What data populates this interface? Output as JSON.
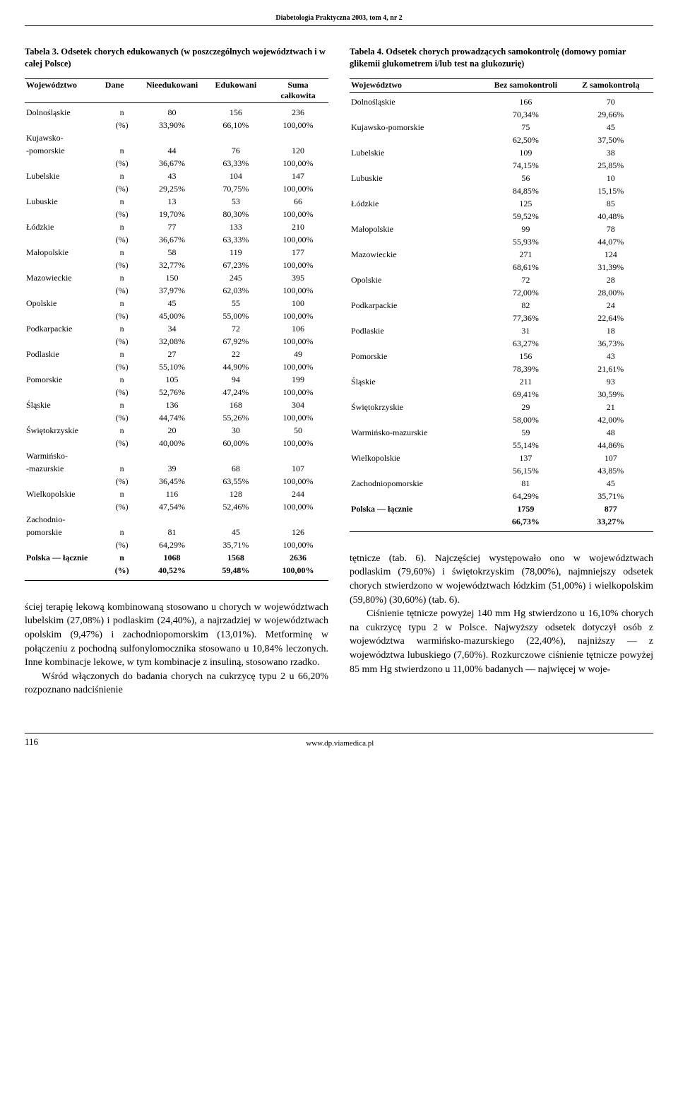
{
  "journal_header": "Diabetologia Praktyczna 2003, tom 4, nr 2",
  "footer": {
    "page": "116",
    "url": "www.dp.viamedica.pl"
  },
  "table3": {
    "caption": "Tabela 3. Odsetek chorych edukowanych (w poszczególnych województwach i w całej Polsce)",
    "head": {
      "c1": "Województwo",
      "c2": "Dane",
      "c3": "Nieedukowani",
      "c4": "Edukowani",
      "c5_a": "Suma",
      "c5_b": "całkowita"
    },
    "rows": [
      {
        "label": "Dolnośląskie",
        "n": [
          "80",
          "156",
          "236"
        ],
        "p": [
          "33,90%",
          "66,10%",
          "100,00%"
        ]
      },
      {
        "label": "Kujawsko-",
        "label2": "-pomorskie",
        "n": [
          "44",
          "76",
          "120"
        ],
        "p": [
          "36,67%",
          "63,33%",
          "100,00%"
        ]
      },
      {
        "label": "Lubelskie",
        "n": [
          "43",
          "104",
          "147"
        ],
        "p": [
          "29,25%",
          "70,75%",
          "100,00%"
        ]
      },
      {
        "label": "Lubuskie",
        "n": [
          "13",
          "53",
          "66"
        ],
        "p": [
          "19,70%",
          "80,30%",
          "100,00%"
        ]
      },
      {
        "label": "Łódzkie",
        "n": [
          "77",
          "133",
          "210"
        ],
        "p": [
          "36,67%",
          "63,33%",
          "100,00%"
        ]
      },
      {
        "label": "Małopolskie",
        "n": [
          "58",
          "119",
          "177"
        ],
        "p": [
          "32,77%",
          "67,23%",
          "100,00%"
        ]
      },
      {
        "label": "Mazowieckie",
        "n": [
          "150",
          "245",
          "395"
        ],
        "p": [
          "37,97%",
          "62,03%",
          "100,00%"
        ]
      },
      {
        "label": "Opolskie",
        "n": [
          "45",
          "55",
          "100"
        ],
        "p": [
          "45,00%",
          "55,00%",
          "100,00%"
        ]
      },
      {
        "label": "Podkarpackie",
        "n": [
          "34",
          "72",
          "106"
        ],
        "p": [
          "32,08%",
          "67,92%",
          "100,00%"
        ]
      },
      {
        "label": "Podlaskie",
        "n": [
          "27",
          "22",
          "49"
        ],
        "p": [
          "55,10%",
          "44,90%",
          "100,00%"
        ]
      },
      {
        "label": "Pomorskie",
        "n": [
          "105",
          "94",
          "199"
        ],
        "p": [
          "52,76%",
          "47,24%",
          "100,00%"
        ]
      },
      {
        "label": "Śląskie",
        "n": [
          "136",
          "168",
          "304"
        ],
        "p": [
          "44,74%",
          "55,26%",
          "100,00%"
        ]
      },
      {
        "label": "Świętokrzyskie",
        "n": [
          "20",
          "30",
          "50"
        ],
        "p": [
          "40,00%",
          "60,00%",
          "100,00%"
        ]
      },
      {
        "label": "Warmińsko-",
        "label2": "-mazurskie",
        "n": [
          "39",
          "68",
          "107"
        ],
        "p": [
          "36,45%",
          "63,55%",
          "100,00%"
        ]
      },
      {
        "label": "Wielkopolskie",
        "n": [
          "116",
          "128",
          "244"
        ],
        "p": [
          "47,54%",
          "52,46%",
          "100,00%"
        ]
      },
      {
        "label": "Zachodnio-",
        "label2": "pomorskie",
        "n": [
          "81",
          "45",
          "126"
        ],
        "p": [
          "64,29%",
          "35,71%",
          "100,00%"
        ]
      }
    ],
    "total": {
      "label": "Polska — łącznie",
      "n": [
        "1068",
        "1568",
        "2636"
      ],
      "p": [
        "40,52%",
        "59,48%",
        "100,00%"
      ]
    }
  },
  "table4": {
    "caption": "Tabela 4. Odsetek chorych prowadzących samokontrolę (domowy pomiar glikemii glukometrem i/lub test na glukozurię)",
    "head": {
      "c1": "Województwo",
      "c2": "Bez samokontroli",
      "c3": "Z samokontrolą"
    },
    "rows": [
      {
        "label": "Dolnośląskie",
        "a": "166",
        "b": "70",
        "pa": "70,34%",
        "pb": "29,66%"
      },
      {
        "label": "Kujawsko-pomorskie",
        "a": "75",
        "b": "45",
        "pa": "62,50%",
        "pb": "37,50%"
      },
      {
        "label": "Lubelskie",
        "a": "109",
        "b": "38",
        "pa": "74,15%",
        "pb": "25,85%"
      },
      {
        "label": "Lubuskie",
        "a": "56",
        "b": "10",
        "pa": "84,85%",
        "pb": "15,15%"
      },
      {
        "label": "Łódzkie",
        "a": "125",
        "b": "85",
        "pa": "59,52%",
        "pb": "40,48%"
      },
      {
        "label": "Małopolskie",
        "a": "99",
        "b": "78",
        "pa": "55,93%",
        "pb": "44,07%"
      },
      {
        "label": "Mazowieckie",
        "a": "271",
        "b": "124",
        "pa": "68,61%",
        "pb": "31,39%"
      },
      {
        "label": "Opolskie",
        "a": "72",
        "b": "28",
        "pa": "72,00%",
        "pb": "28,00%"
      },
      {
        "label": "Podkarpackie",
        "a": "82",
        "b": "24",
        "pa": "77,36%",
        "pb": "22,64%"
      },
      {
        "label": "Podlaskie",
        "a": "31",
        "b": "18",
        "pa": "63,27%",
        "pb": "36,73%"
      },
      {
        "label": "Pomorskie",
        "a": "156",
        "b": "43",
        "pa": "78,39%",
        "pb": "21,61%"
      },
      {
        "label": "Śląskie",
        "a": "211",
        "b": "93",
        "pa": "69,41%",
        "pb": "30,59%"
      },
      {
        "label": "Świętokrzyskie",
        "a": "29",
        "b": "21",
        "pa": "58,00%",
        "pb": "42,00%"
      },
      {
        "label": "Warmińsko-mazurskie",
        "a": "59",
        "b": "48",
        "pa": "55,14%",
        "pb": "44,86%"
      },
      {
        "label": "Wielkopolskie",
        "a": "137",
        "b": "107",
        "pa": "56,15%",
        "pb": "43,85%"
      },
      {
        "label": "Zachodniopomorskie",
        "a": "81",
        "b": "45",
        "pa": "64,29%",
        "pb": "35,71%"
      }
    ],
    "total": {
      "label": "Polska — łącznie",
      "a": "1759",
      "b": "877",
      "pa": "66,73%",
      "pb": "33,27%"
    }
  },
  "left_text": {
    "p1": "ściej terapię lekową kombinowaną stosowano u chorych w województwach lubelskim (27,08%) i podlaskim (24,40%), a najrzadziej w województwach opolskim (9,47%) i zachodniopomorskim (13,01%). Metforminę w połączeniu z pochodną sulfonylomocznika stosowano u 10,84% leczonych. Inne kombinacje lekowe, w tym kombinacje z insuliną, stosowano rzadko.",
    "p2": "Wśród włączonych do badania chorych na cukrzycę typu 2 u 66,20% rozpoznano nadciśnienie"
  },
  "right_text": {
    "p1": "tętnicze (tab. 6). Najczęściej występowało ono w województwach podlaskim (79,60%) i świętokrzyskim (78,00%), najmniejszy odsetek chorych stwierdzono w województwach łódzkim (51,00%) i wielkopolskim (59,80%) (30,60%) (tab. 6).",
    "p2": "Ciśnienie tętnicze powyżej 140 mm Hg stwierdzono u 16,10% chorych na cukrzycę typu 2 w Polsce. Najwyższy odsetek dotyczył osób z województwa warmińsko-mazurskiego (22,40%), najniższy — z województwa lubuskiego (7,60%). Rozkurczowe ciśnienie tętnicze powyżej 85 mm Hg stwierdzono u 11,00% badanych — najwięcej w woje-"
  }
}
